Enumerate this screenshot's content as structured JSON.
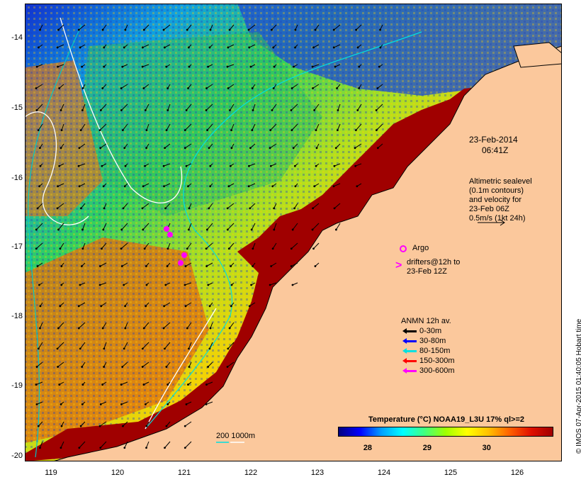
{
  "map": {
    "date_label": "23-Feb-2014",
    "time_label": "06:41Z",
    "lat_ticks": [
      "-14",
      "-15",
      "-16",
      "-17",
      "-18",
      "-19",
      "-20"
    ],
    "lon_ticks": [
      "119",
      "120",
      "121",
      "122",
      "123",
      "124",
      "125",
      "126"
    ],
    "lat_range": [
      -20.1,
      -13.6
    ],
    "lon_range": [
      118.65,
      126.7
    ]
  },
  "altimetry_note": {
    "line1": "Altimetric sealevel",
    "line2": "(0.1m contours)",
    "line3": "and velocity for",
    "line4": "23-Feb 06Z",
    "line5": "0.5m/s (1kt 24h)"
  },
  "argo": {
    "label": "Argo"
  },
  "drifters": {
    "symbol": ">",
    "line1": "drifters@12h to",
    "line2": "23-Feb 12Z"
  },
  "anmn_legend": {
    "title": "ANMN 12h av.",
    "items": [
      {
        "label": "0-30m",
        "color": "#000000"
      },
      {
        "label": "30-80m",
        "color": "#0000ff"
      },
      {
        "label": "80-150m",
        "color": "#00e0e0"
      },
      {
        "label": "150-300m",
        "color": "#ff0000"
      },
      {
        "label": "300-600m",
        "color": "#ff00ff"
      }
    ]
  },
  "isobath_legend": {
    "label": "200  1000m"
  },
  "colorbar": {
    "title": "Temperature (°C) NOAA19_L3U 17% ql>=2",
    "ticks": [
      "28",
      "29",
      "30"
    ],
    "tick_values": [
      28,
      29,
      30
    ],
    "range": [
      27.5,
      31.1
    ],
    "colors": [
      "#000080",
      "#0000ff",
      "#00a0ff",
      "#00ffff",
      "#40ff80",
      "#a0ff00",
      "#ffff00",
      "#ffc000",
      "#ff6000",
      "#e01000",
      "#a00000"
    ]
  },
  "credit": "© IMOS 07-Apr-2015 01:40:05 Hobart time",
  "colors": {
    "land": "#fbc89c",
    "hot_shelf": "#a00000",
    "warm": "#f0a020"
  }
}
